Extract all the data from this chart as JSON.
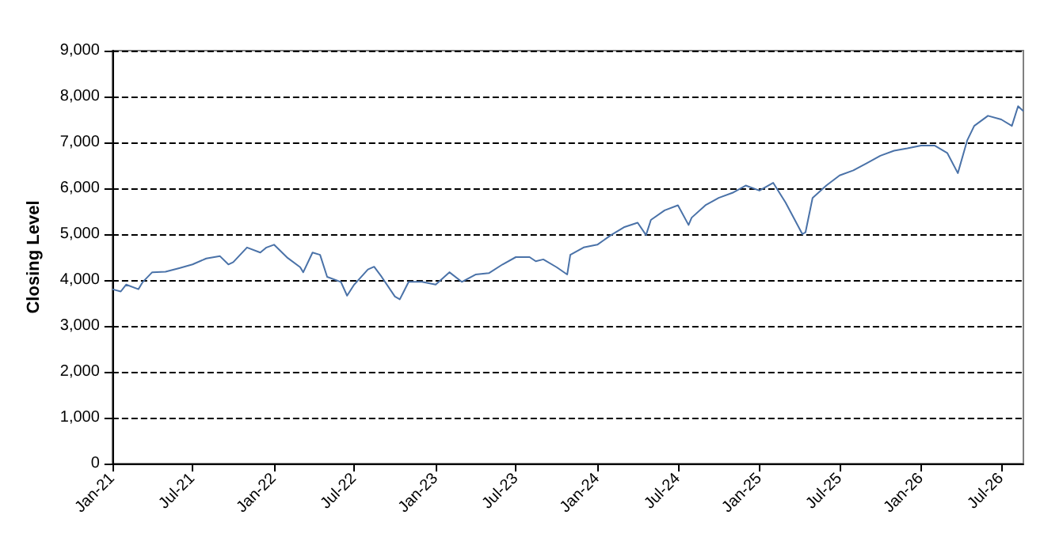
{
  "chart_data": {
    "type": "line",
    "ylabel": "Closing Level",
    "x": [
      "2021-01-01",
      "2021-01-20",
      "2021-02-01",
      "2021-03-01",
      "2021-03-10",
      "2021-04-01",
      "2021-05-01",
      "2021-06-01",
      "2021-07-01",
      "2021-08-01",
      "2021-09-01",
      "2021-09-20",
      "2021-10-01",
      "2021-11-01",
      "2021-12-01",
      "2021-12-15",
      "2022-01-01",
      "2022-02-01",
      "2022-03-01",
      "2022-03-08",
      "2022-03-29",
      "2022-04-15",
      "2022-05-01",
      "2022-06-01",
      "2022-06-15",
      "2022-07-01",
      "2022-08-01",
      "2022-08-15",
      "2022-09-01",
      "2022-10-01",
      "2022-10-12",
      "2022-11-01",
      "2022-12-01",
      "2023-01-01",
      "2023-02-01",
      "2023-03-01",
      "2023-04-01",
      "2023-05-01",
      "2023-06-01",
      "2023-07-01",
      "2023-08-01",
      "2023-08-15",
      "2023-09-01",
      "2023-10-01",
      "2023-10-25",
      "2023-11-01",
      "2023-12-01",
      "2024-01-01",
      "2024-02-01",
      "2024-03-01",
      "2024-04-01",
      "2024-04-20",
      "2024-05-01",
      "2024-06-01",
      "2024-07-01",
      "2024-07-25",
      "2024-08-01",
      "2024-09-01",
      "2024-10-01",
      "2024-11-01",
      "2024-12-01",
      "2025-01-01",
      "2025-02-01",
      "2025-03-01",
      "2025-04-08",
      "2025-04-15",
      "2025-05-01",
      "2025-06-01",
      "2025-07-01",
      "2025-08-01",
      "2025-09-01",
      "2025-10-01",
      "2025-11-01",
      "2025-12-01",
      "2026-01-01",
      "2026-02-01",
      "2026-03-01",
      "2026-03-25",
      "2026-04-15",
      "2026-05-01",
      "2026-06-01",
      "2026-07-01",
      "2026-07-25",
      "2026-08-08",
      "2026-08-20"
    ],
    "series": [
      {
        "color": "#4a72a8",
        "values": [
          3800,
          3750,
          3900,
          3800,
          3950,
          4170,
          4180,
          4260,
          4340,
          4470,
          4520,
          4340,
          4390,
          4710,
          4600,
          4710,
          4770,
          4480,
          4280,
          4170,
          4600,
          4550,
          4070,
          3960,
          3660,
          3900,
          4230,
          4290,
          4070,
          3640,
          3580,
          3960,
          3960,
          3900,
          4170,
          3960,
          4120,
          4150,
          4340,
          4500,
          4500,
          4410,
          4450,
          4280,
          4120,
          4550,
          4710,
          4770,
          4980,
          5150,
          5250,
          4980,
          5310,
          5520,
          5630,
          5200,
          5360,
          5630,
          5790,
          5900,
          6060,
          5950,
          6120,
          5690,
          5000,
          5040,
          5790,
          6060,
          6280,
          6390,
          6550,
          6710,
          6820,
          6870,
          6930,
          6930,
          6770,
          6330,
          7040,
          7360,
          7580,
          7500,
          7360,
          7790,
          7680
        ]
      }
    ],
    "xlim": [
      "2021-01-01",
      "2026-08-20"
    ],
    "xticks": [
      {
        "value": "2021-01-01",
        "label": "Jan-21"
      },
      {
        "value": "2021-07-01",
        "label": "Jul-21"
      },
      {
        "value": "2022-01-01",
        "label": "Jan-22"
      },
      {
        "value": "2022-07-01",
        "label": "Jul-22"
      },
      {
        "value": "2023-01-01",
        "label": "Jan-23"
      },
      {
        "value": "2023-07-01",
        "label": "Jul-23"
      },
      {
        "value": "2024-01-01",
        "label": "Jan-24"
      },
      {
        "value": "2024-07-01",
        "label": "Jul-24"
      },
      {
        "value": "2025-01-01",
        "label": "Jan-25"
      },
      {
        "value": "2025-07-01",
        "label": "Jul-25"
      },
      {
        "value": "2026-01-01",
        "label": "Jan-26"
      },
      {
        "value": "2026-07-01",
        "label": "Jul-26"
      }
    ],
    "ylim": [
      0,
      9000
    ],
    "yticks": [
      {
        "value": 0,
        "label": "0"
      },
      {
        "value": 1000,
        "label": "1,000"
      },
      {
        "value": 2000,
        "label": "2,000"
      },
      {
        "value": 3000,
        "label": "3,000"
      },
      {
        "value": 4000,
        "label": "4,000"
      },
      {
        "value": 5000,
        "label": "5,000"
      },
      {
        "value": 6000,
        "label": "6,000"
      },
      {
        "value": 7000,
        "label": "7,000"
      },
      {
        "value": 8000,
        "label": "8,000"
      },
      {
        "value": 9000,
        "label": "9,000"
      }
    ],
    "grid": "y",
    "marker": "none",
    "line_style": "solid"
  }
}
